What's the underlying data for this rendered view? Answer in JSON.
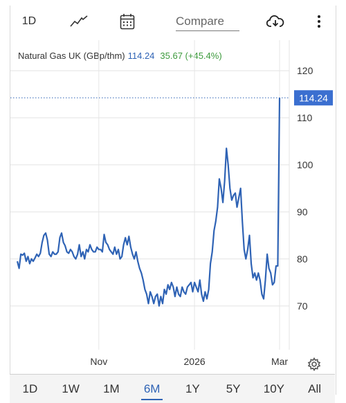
{
  "toolbar": {
    "range_label": "1D",
    "compare_placeholder": "Compare",
    "icons": [
      "line-chart-icon",
      "calendar-icon",
      "cloud-download-icon",
      "more-vertical-icon"
    ]
  },
  "legend": {
    "name": "Natural Gas UK (GBp/thm)",
    "price": "114.24",
    "change": "35.67 (+45.4%)"
  },
  "price_label": "114.24",
  "colors": {
    "line": "#2f63b5",
    "price_box": "#3b6fd0",
    "change_positive": "#3c9a3c"
  },
  "range_buttons": [
    {
      "label": "1D",
      "active": false
    },
    {
      "label": "1W",
      "active": false
    },
    {
      "label": "1M",
      "active": false
    },
    {
      "label": "6M",
      "active": true
    },
    {
      "label": "1Y",
      "active": false
    },
    {
      "label": "5Y",
      "active": false
    },
    {
      "label": "10Y",
      "active": false
    },
    {
      "label": "All",
      "active": false
    }
  ],
  "chart_data": {
    "type": "line",
    "title": "Natural Gas UK (GBp/thm)",
    "y_ticks": [
      70,
      80,
      90,
      100,
      110,
      120
    ],
    "y_tick_labels": [
      "70",
      "80",
      "90",
      "100",
      "110",
      "120"
    ],
    "ylim": [
      60.7,
      126.5
    ],
    "x_tick_labels": [
      "Nov",
      "2026",
      "Mar"
    ],
    "x_tick_index": [
      46,
      100,
      148
    ],
    "grid": true,
    "last_price": 114.24,
    "series": [
      {
        "values": [
          79.5,
          78,
          81,
          80.8,
          81.2,
          79.5,
          80.5,
          79,
          80,
          79.5,
          80.2,
          81,
          80.5,
          81.2,
          83.5,
          85,
          85.5,
          84,
          81,
          80.5,
          81.5,
          81,
          81,
          81.5,
          84.5,
          85.5,
          83.5,
          82.8,
          81.5,
          81.2,
          82,
          81.5,
          80.5,
          80,
          81,
          83,
          80.5,
          81.5,
          80,
          82,
          81.5,
          83,
          82,
          81.5,
          81.5,
          82.5,
          82,
          82,
          81.5,
          85.2,
          83.5,
          83,
          82,
          81.5,
          81,
          82.5,
          81,
          82,
          80,
          80.5,
          83,
          84.5,
          83,
          84.8,
          82.5,
          81,
          80,
          81.5,
          79.5,
          78,
          77,
          75.5,
          73.5,
          72.5,
          70.5,
          73,
          72,
          70.5,
          72,
          72.5,
          70,
          72,
          70.5,
          73.5,
          72.5,
          74.5,
          73.5,
          75,
          74,
          72,
          74,
          72.5,
          72,
          74,
          73,
          72.5,
          74,
          74.5,
          75,
          73,
          75,
          74,
          73,
          75.5,
          72.5,
          71,
          73,
          71.5,
          73.5,
          79,
          81.5,
          86,
          88,
          91,
          97,
          95,
          92,
          96.5,
          103.5,
          100,
          95,
          92.5,
          93.5,
          94,
          91,
          93,
          95,
          88,
          82,
          80,
          82,
          85,
          79,
          76,
          77,
          75.5,
          77,
          75.5,
          72.5,
          71.5,
          75.5,
          81,
          78,
          77,
          74.5,
          75,
          78.5,
          78.5,
          114.24
        ]
      }
    ]
  }
}
